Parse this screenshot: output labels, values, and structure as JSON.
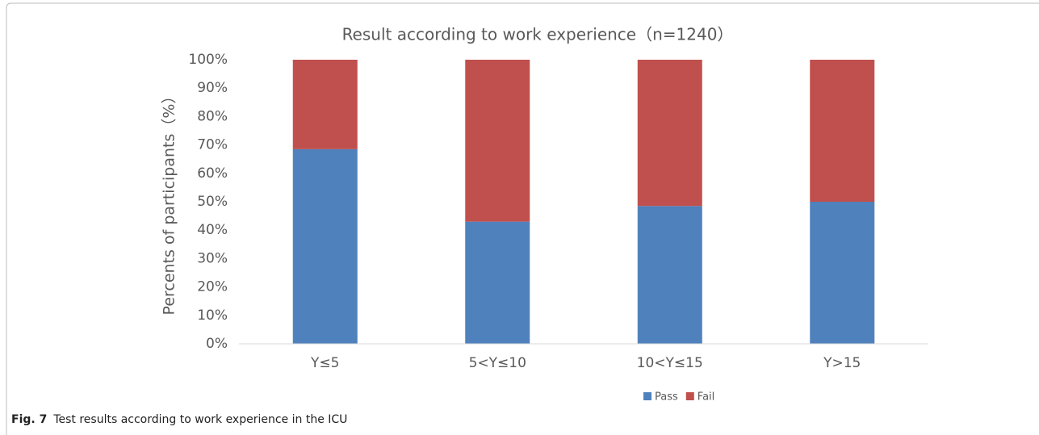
{
  "chart_data": {
    "type": "stacked_bar",
    "title": "Result according to work experience（n=1240）",
    "y_label": "Percents of participants（%）",
    "categories": [
      "Y≤5",
      "5<Y≤10",
      "10<Y≤15",
      "Y>15"
    ],
    "series": [
      {
        "name": "Pass",
        "color": "#4f81bd",
        "values": [
          68.5,
          43,
          48.5,
          50
        ]
      },
      {
        "name": "Fail",
        "color": "#c0504d",
        "values": [
          31.5,
          57,
          51.5,
          50
        ]
      }
    ],
    "ylim": [
      0,
      100
    ],
    "yticks": [
      {
        "value": 0,
        "label": "0%"
      },
      {
        "value": 10,
        "label": "10%"
      },
      {
        "value": 20,
        "label": "20%"
      },
      {
        "value": 30,
        "label": "30%"
      },
      {
        "value": 40,
        "label": "40%"
      },
      {
        "value": 50,
        "label": "50%"
      },
      {
        "value": 60,
        "label": "60%"
      },
      {
        "value": 70,
        "label": "70%"
      },
      {
        "value": 80,
        "label": "80%"
      },
      {
        "value": 90,
        "label": "90%"
      },
      {
        "value": 100,
        "label": "100%"
      }
    ],
    "grid": false,
    "legend": "bottom"
  },
  "caption": {
    "label": "Fig. 7",
    "text": "Test results according to work experience in the ICU"
  }
}
